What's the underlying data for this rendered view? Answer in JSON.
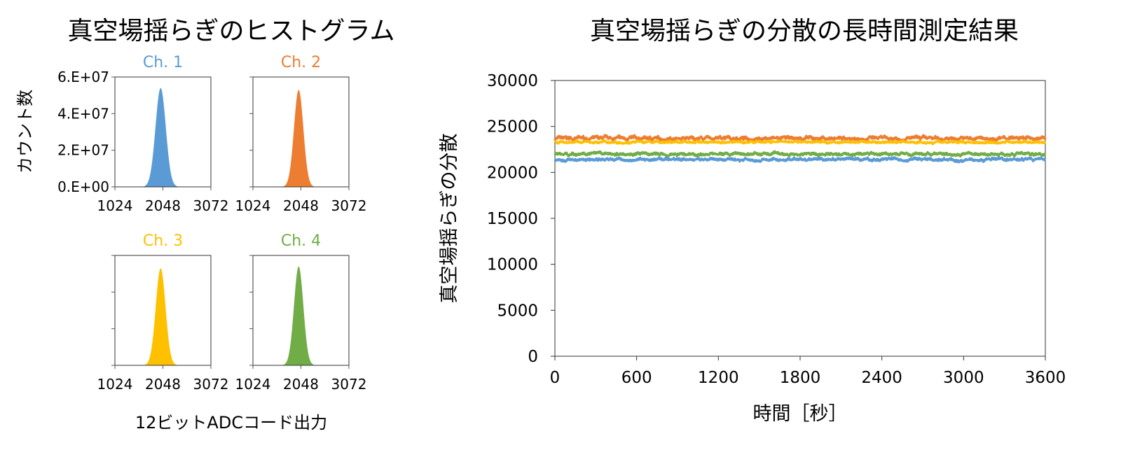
{
  "left_title": "真空場揺らぎのヒストグラム",
  "right_title": "真空場揺らぎの分散の長時間測定結果",
  "chart_data": [
    {
      "type": "area",
      "title": "真空場揺らぎのヒストグラム",
      "xlabel": "12ビットADCコード出力",
      "ylabel": "カウント数",
      "xlim": [
        1024,
        3072
      ],
      "ylim": [
        0,
        60000000
      ],
      "xticks": [
        "1024",
        "2048",
        "3072"
      ],
      "yticks": [
        "0.E+00",
        "2.E+07",
        "4.E+07",
        "6.E+07"
      ],
      "grid": false,
      "panels": [
        {
          "name": "Ch. 1",
          "color": "#5b9bd5",
          "center": 2000,
          "sigma": 110,
          "peak": 54000000
        },
        {
          "name": "Ch. 2",
          "color": "#ed7d31",
          "center": 2000,
          "sigma": 100,
          "peak": 53000000
        },
        {
          "name": "Ch. 3",
          "color": "#ffc000",
          "center": 2000,
          "sigma": 104,
          "peak": 53000000
        },
        {
          "name": "Ch. 4",
          "color": "#70ad47",
          "center": 2000,
          "sigma": 100,
          "peak": 54000000
        }
      ]
    },
    {
      "type": "scatter",
      "title": "真空場揺らぎの分散の長時間測定結果",
      "xlabel": "時間［秒］",
      "ylabel": "真空場揺らぎの分散",
      "xlim": [
        0,
        3600
      ],
      "ylim": [
        0,
        30000
      ],
      "xticks": [
        "0",
        "600",
        "1200",
        "1800",
        "2400",
        "3000",
        "3600"
      ],
      "yticks": [
        "0",
        "5000",
        "10000",
        "15000",
        "20000",
        "25000",
        "30000"
      ],
      "grid": false,
      "series": [
        {
          "color": "#ed7d31",
          "mean": 23700,
          "noise": 250
        },
        {
          "color": "#ffc000",
          "mean": 23300,
          "noise": 150
        },
        {
          "color": "#70ad47",
          "mean": 22000,
          "noise": 200
        },
        {
          "color": "#5b9bd5",
          "mean": 21400,
          "noise": 200
        }
      ]
    }
  ]
}
